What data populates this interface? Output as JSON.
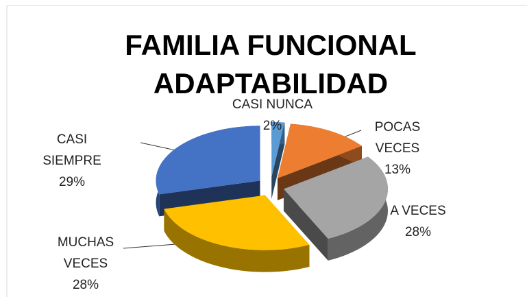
{
  "chart_data": {
    "type": "pie",
    "title": "FAMILIA FUNCIONAL ADAPTABILIDAD",
    "categories": [
      "CASI NUNCA",
      "POCAS VECES",
      "A VECES",
      "MUCHAS VECES",
      "CASI SIEMPRE"
    ],
    "values": [
      2,
      13,
      28,
      28,
      29
    ],
    "value_labels": [
      "2%",
      "13%",
      "28%",
      "28%",
      "29%"
    ],
    "colors": [
      "#5b9bd5",
      "#ed7d31",
      "#a5a5a5",
      "#ffc000",
      "#4472c4"
    ]
  }
}
